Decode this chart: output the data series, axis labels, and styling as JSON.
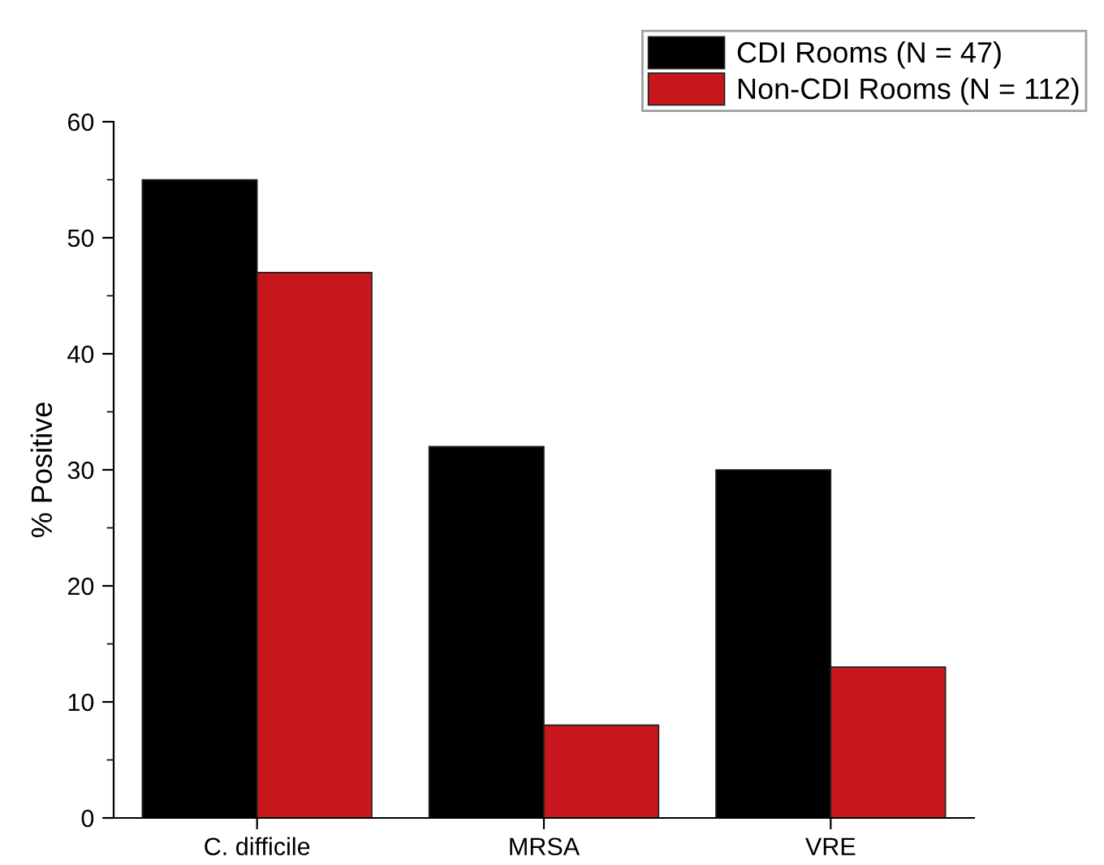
{
  "chart_data": {
    "type": "bar",
    "ylabel": "% Positive",
    "categories": [
      "C. difficile",
      "MRSA",
      "VRE"
    ],
    "series": [
      {
        "name": "CDI Rooms (N = 47)",
        "color": "#000000",
        "values": [
          55,
          32,
          30
        ]
      },
      {
        "name": "Non-CDI Rooms (N = 112)",
        "color": "#c8171c",
        "values": [
          47,
          8,
          13
        ]
      }
    ],
    "ylim": [
      0,
      60
    ],
    "yticks": [
      0,
      10,
      20,
      30,
      40,
      50,
      60
    ],
    "grid": false,
    "legend": "top right"
  }
}
